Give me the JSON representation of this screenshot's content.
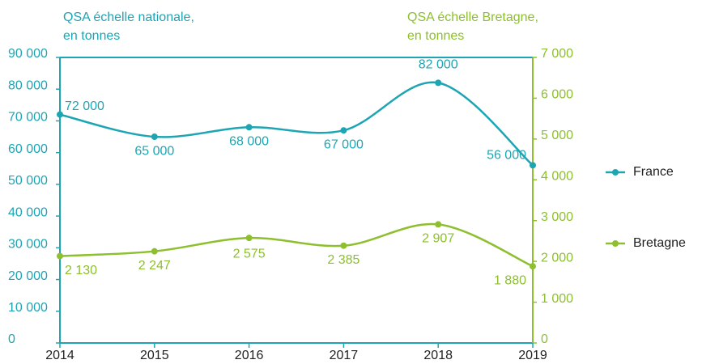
{
  "chart_data": {
    "type": "line",
    "y_label": [
      "QSA échelle nationale,",
      "en tonnes"
    ],
    "y2_label": [
      "QSA échelle Bretagne,",
      "en tonnes"
    ],
    "categories": [
      "2014",
      "2015",
      "2016",
      "2017",
      "2018",
      "2019"
    ],
    "series": [
      {
        "name": "France",
        "color": "#1ea5b4",
        "values": [
          72000,
          65000,
          68000,
          67000,
          82000,
          56000
        ],
        "value_labels": [
          "72 000",
          "65 000",
          "68 000",
          "67 000",
          "82 000",
          "56 000"
        ]
      },
      {
        "name": "Bretagne",
        "color": "#8dbf2e",
        "axis": "y2",
        "values": [
          2130,
          2247,
          2575,
          2385,
          2907,
          1880
        ],
        "value_labels": [
          "2 130",
          "2 247",
          "2 575",
          "2 385",
          "2 907",
          "1 880"
        ]
      }
    ],
    "ylim": [
      0,
      90000
    ],
    "yticks": [
      0,
      {
        "value": 10000,
        "label": "10 000"
      },
      {
        "value": 20000,
        "label": "20 000"
      },
      {
        "value": 30000,
        "label": "30 000"
      },
      {
        "value": 40000,
        "label": "40 000"
      },
      {
        "value": 50000,
        "label": "50 000"
      },
      {
        "value": 60000,
        "label": "60 000"
      },
      {
        "value": 70000,
        "label": "70 000"
      },
      {
        "value": 80000,
        "label": "80 000"
      },
      {
        "value": 90000,
        "label": "90 000"
      }
    ],
    "y2lim": [
      0,
      7000
    ],
    "y2ticks": [
      0,
      {
        "value": 1000,
        "label": "1 000"
      },
      {
        "value": 2000,
        "label": "2 000"
      },
      {
        "value": 3000,
        "label": "3 000"
      },
      {
        "value": 4000,
        "label": "4 000"
      },
      {
        "value": 5000,
        "label": "5 000"
      },
      {
        "value": 6000,
        "label": "6 000"
      },
      {
        "value": 7000,
        "label": "7 000"
      }
    ],
    "legend": "right"
  }
}
